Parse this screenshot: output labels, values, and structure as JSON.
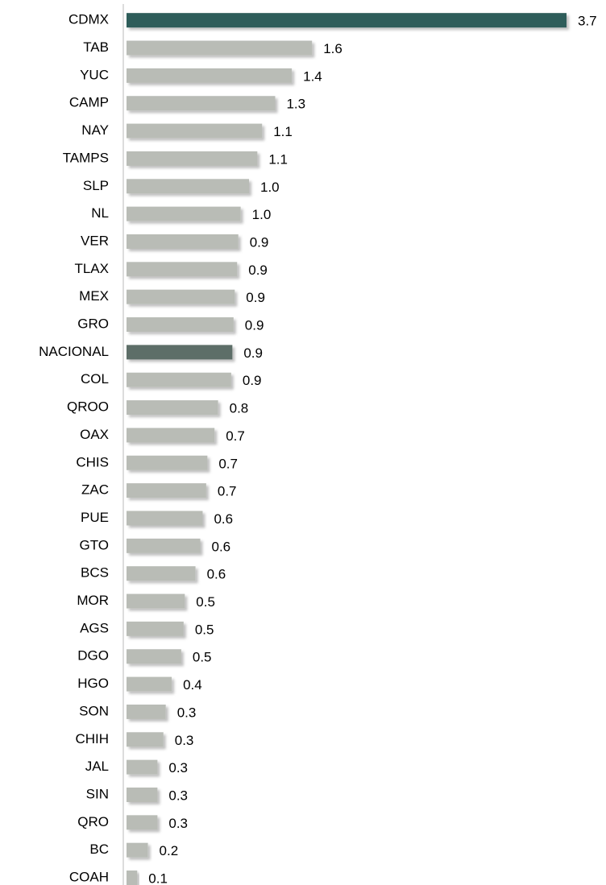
{
  "chart_data": {
    "type": "hbar",
    "categories": [
      "CDMX",
      "TAB",
      "YUC",
      "CAMP",
      "NAY",
      "TAMPS",
      "SLP",
      "NL",
      "VER",
      "TLAX",
      "MEX",
      "GRO",
      "NACIONAL",
      "COL",
      "QROO",
      "OAX",
      "CHIS",
      "ZAC",
      "PUE",
      "GTO",
      "BCS",
      "MOR",
      "AGS",
      "DGO",
      "HGO",
      "SON",
      "CHIH",
      "JAL",
      "SIN",
      "QRO",
      "BC",
      "COAH"
    ],
    "values": [
      3.7,
      1.56,
      1.39,
      1.25,
      1.14,
      1.1,
      1.03,
      0.96,
      0.94,
      0.93,
      0.91,
      0.9,
      0.89,
      0.88,
      0.77,
      0.74,
      0.68,
      0.67,
      0.64,
      0.62,
      0.58,
      0.49,
      0.48,
      0.46,
      0.38,
      0.33,
      0.31,
      0.26,
      0.26,
      0.26,
      0.18,
      0.09
    ],
    "value_labels": [
      "3.7",
      "1.6",
      "1.4",
      "1.3",
      "1.1",
      "1.1",
      "1.0",
      "1.0",
      "0.9",
      "0.9",
      "0.9",
      "0.9",
      "0.9",
      "0.9",
      "0.8",
      "0.7",
      "0.7",
      "0.7",
      "0.6",
      "0.6",
      "0.6",
      "0.5",
      "0.5",
      "0.5",
      "0.4",
      "0.3",
      "0.3",
      "0.3",
      "0.3",
      "0.3",
      "0.2",
      "0.1"
    ],
    "colors": [
      "#2e5d5a",
      "#b9bcb6",
      "#b9bcb6",
      "#b9bcb6",
      "#b9bcb6",
      "#b9bcb6",
      "#b9bcb6",
      "#b9bcb6",
      "#b9bcb6",
      "#b9bcb6",
      "#b9bcb6",
      "#b9bcb6",
      "#5d6e67",
      "#b9bcb6",
      "#b9bcb6",
      "#b9bcb6",
      "#b9bcb6",
      "#b9bcb6",
      "#b9bcb6",
      "#b9bcb6",
      "#b9bcb6",
      "#b9bcb6",
      "#b9bcb6",
      "#b9bcb6",
      "#b9bcb6",
      "#b9bcb6",
      "#b9bcb6",
      "#b9bcb6",
      "#b9bcb6",
      "#b9bcb6",
      "#b9bcb6",
      "#b9bcb6"
    ],
    "xlim": [
      0,
      3.7
    ]
  }
}
